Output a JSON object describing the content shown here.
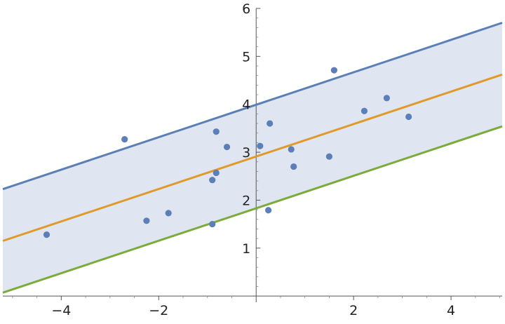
{
  "chart_data": {
    "type": "scatter",
    "title": "",
    "xlabel": "",
    "ylabel": "",
    "xlim": [
      -5.2,
      5.05
    ],
    "ylim": [
      -0.13,
      6.0
    ],
    "x_ticks": [
      -4,
      -2,
      2,
      4
    ],
    "y_ticks": [
      1,
      2,
      3,
      4,
      5,
      6
    ],
    "x_tick_labels": [
      "−4",
      "−2",
      "2",
      "4"
    ],
    "y_tick_labels": [
      "1",
      "2",
      "3",
      "4",
      "5",
      "6"
    ],
    "grid": false,
    "legend": "none",
    "points": [
      {
        "x": -4.3,
        "y": 1.28
      },
      {
        "x": -2.7,
        "y": 3.27
      },
      {
        "x": -2.25,
        "y": 1.57
      },
      {
        "x": -1.8,
        "y": 1.73
      },
      {
        "x": -0.9,
        "y": 1.5
      },
      {
        "x": -0.9,
        "y": 2.42
      },
      {
        "x": -0.82,
        "y": 2.57
      },
      {
        "x": -0.82,
        "y": 3.43
      },
      {
        "x": -0.6,
        "y": 3.11
      },
      {
        "x": 0.08,
        "y": 3.13
      },
      {
        "x": 0.25,
        "y": 1.79
      },
      {
        "x": 0.28,
        "y": 3.6
      },
      {
        "x": 0.72,
        "y": 3.06
      },
      {
        "x": 0.77,
        "y": 2.7
      },
      {
        "x": 1.5,
        "y": 2.91
      },
      {
        "x": 1.6,
        "y": 4.71
      },
      {
        "x": 2.22,
        "y": 3.86
      },
      {
        "x": 2.68,
        "y": 4.13
      },
      {
        "x": 3.13,
        "y": 3.74
      }
    ],
    "lines": [
      {
        "role": "upper",
        "color": "#5b7fb6",
        "x": [
          -5.2,
          5.05
        ],
        "y": [
          2.23,
          5.7
        ]
      },
      {
        "role": "fit",
        "color": "#e09a2a",
        "x": [
          -5.2,
          5.05
        ],
        "y": [
          1.15,
          4.62
        ]
      },
      {
        "role": "lower",
        "color": "#7bab3a",
        "x": [
          -5.2,
          5.05
        ],
        "y": [
          0.07,
          3.54
        ]
      }
    ],
    "band": {
      "between": [
        "lower",
        "upper"
      ],
      "color": "#e0e6f1"
    },
    "point_color": "#5b7fb6"
  }
}
